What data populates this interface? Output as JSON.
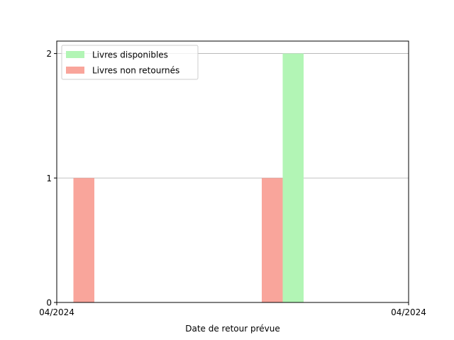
{
  "chart_data": {
    "type": "bar",
    "xlabel": "Date de retour prévue",
    "ylabel": "",
    "ylim": [
      0,
      2.1
    ],
    "yticks": [
      0,
      1,
      2
    ],
    "x_tick_labels": [
      "04/2024",
      "04/2024"
    ],
    "grid": "y",
    "legend_position": "top-left",
    "series": [
      {
        "name": "Livres disponibles",
        "color": "#b2f5b5",
        "points": [
          {
            "slot": 11,
            "value": 2
          }
        ]
      },
      {
        "name": "Livres non retournés",
        "color": "#f9a59b",
        "points": [
          {
            "slot": 1,
            "value": 1
          },
          {
            "slot": 10,
            "value": 1
          }
        ]
      }
    ]
  }
}
